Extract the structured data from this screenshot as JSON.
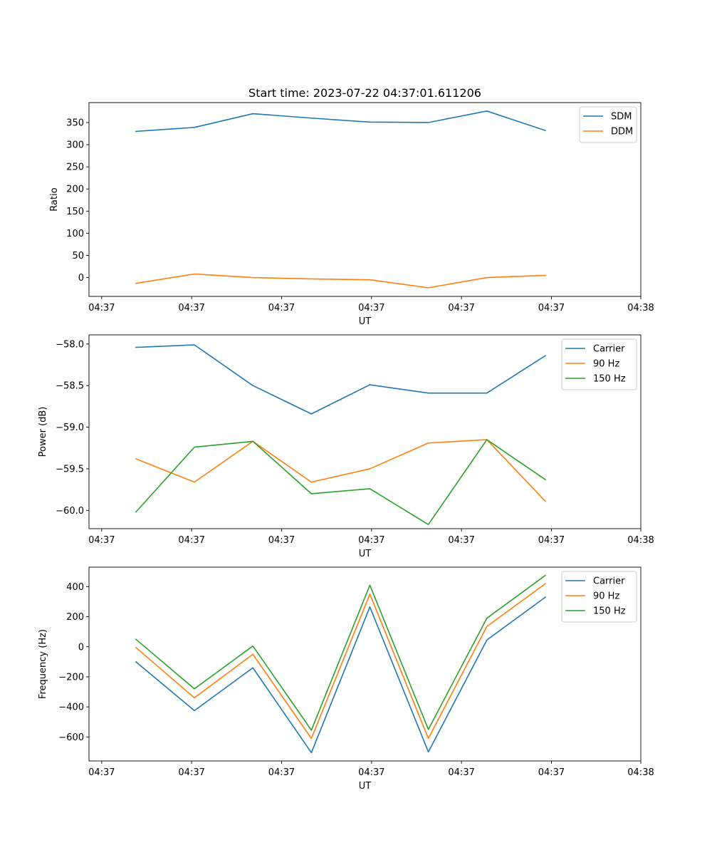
{
  "chart_data": [
    {
      "type": "line",
      "title": "Start time: 2023-07-22 04:37:01.611206",
      "xlabel": "UT",
      "ylabel": "Ratio",
      "x_tick_labels": [
        "04:37",
        "04:37",
        "04:37",
        "04:37",
        "04:37",
        "04:37",
        "04:38"
      ],
      "x_range": [
        0,
        100
      ],
      "x": [
        8.5,
        19.1,
        29.7,
        40.3,
        50.9,
        61.5,
        72.1,
        82.7
      ],
      "ylim": [
        -42.5,
        395
      ],
      "y_ticks": [
        0,
        50,
        100,
        150,
        200,
        250,
        300,
        350
      ],
      "y_tick_labels": [
        "0",
        "50",
        "100",
        "150",
        "200",
        "250",
        "300",
        "350"
      ],
      "legend_position": "top-right",
      "series": [
        {
          "name": "SDM",
          "color": "#1f77b4",
          "values": [
            330,
            339,
            370,
            360,
            351,
            350,
            376,
            332
          ]
        },
        {
          "name": "DDM",
          "color": "#ff7f0e",
          "values": [
            -13,
            8,
            0,
            -3,
            -5,
            -23,
            0,
            5
          ]
        }
      ]
    },
    {
      "type": "line",
      "title": "",
      "xlabel": "UT",
      "ylabel": "Power (dB)",
      "x_tick_labels": [
        "04:37",
        "04:37",
        "04:37",
        "04:37",
        "04:37",
        "04:37",
        "04:38"
      ],
      "x_range": [
        0,
        100
      ],
      "x": [
        8.5,
        19.1,
        29.7,
        40.3,
        50.9,
        61.5,
        72.1,
        82.7
      ],
      "ylim": [
        -60.22,
        -57.89
      ],
      "y_ticks": [
        -60.0,
        -59.5,
        -59.0,
        -58.5,
        -58.0
      ],
      "y_tick_labels": [
        "−60.0",
        "−59.5",
        "−59.0",
        "−58.5",
        "−58.0"
      ],
      "legend_position": "top-right",
      "series": [
        {
          "name": "Carrier",
          "color": "#1f77b4",
          "values": [
            -58.04,
            -58.01,
            -58.5,
            -58.84,
            -58.49,
            -58.59,
            -58.59,
            -58.14
          ]
        },
        {
          "name": "90 Hz",
          "color": "#ff7f0e",
          "values": [
            -59.38,
            -59.66,
            -59.17,
            -59.66,
            -59.5,
            -59.19,
            -59.15,
            -59.89
          ]
        },
        {
          "name": "150 Hz",
          "color": "#2ca02c",
          "values": [
            -60.02,
            -59.24,
            -59.17,
            -59.8,
            -59.74,
            -60.17,
            -59.15,
            -59.63
          ]
        }
      ]
    },
    {
      "type": "line",
      "title": "",
      "xlabel": "UT",
      "ylabel": "Frequency (Hz)",
      "x_tick_labels": [
        "04:37",
        "04:37",
        "04:37",
        "04:37",
        "04:37",
        "04:37",
        "04:38"
      ],
      "x_range": [
        0,
        100
      ],
      "x": [
        8.5,
        19.1,
        29.7,
        40.3,
        50.9,
        61.5,
        72.1,
        82.7
      ],
      "ylim": [
        -760,
        530
      ],
      "y_ticks": [
        -600,
        -400,
        -200,
        0,
        200,
        400
      ],
      "y_tick_labels": [
        "−600",
        "−400",
        "−200",
        "0",
        "200",
        "400"
      ],
      "legend_position": "top-right",
      "series": [
        {
          "name": "Carrier",
          "color": "#1f77b4",
          "values": [
            -100,
            -425,
            -140,
            -705,
            265,
            -700,
            45,
            330
          ]
        },
        {
          "name": "90 Hz",
          "color": "#ff7f0e",
          "values": [
            -5,
            -340,
            -50,
            -610,
            350,
            -610,
            135,
            420
          ]
        },
        {
          "name": "150 Hz",
          "color": "#2ca02c",
          "values": [
            50,
            -280,
            5,
            -555,
            410,
            -550,
            190,
            475
          ]
        }
      ]
    }
  ]
}
